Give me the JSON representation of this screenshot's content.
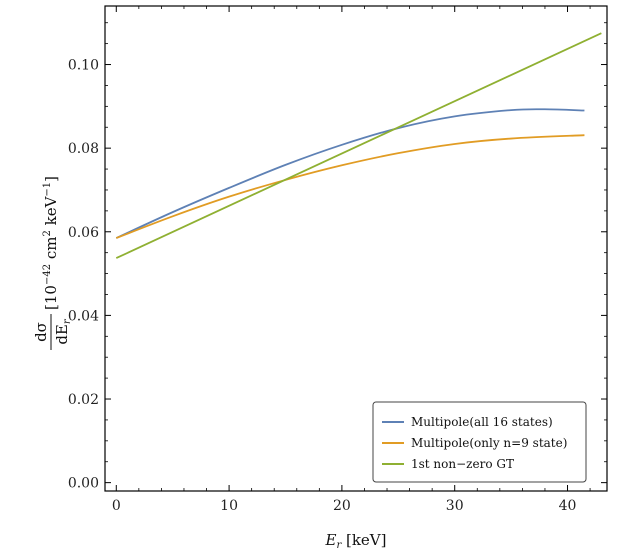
{
  "chart_data": {
    "type": "line",
    "xlabel": "E_r [keV]",
    "ylabel_parts": {
      "fraction_num": "dσ",
      "fraction_den": "dE",
      "fraction_den_sub": "r",
      "units_pre": "[10",
      "units_exp1": "−42",
      "units_mid": " cm",
      "units_exp2": "2",
      "units_mid2": " keV",
      "units_exp3": "−1",
      "units_post": "]"
    },
    "xlabel_parts": {
      "symbol": "E",
      "sub": "r",
      "units": " [keV]"
    },
    "xlim": [
      -1,
      43.5
    ],
    "ylim": [
      -0.002,
      0.114
    ],
    "xticks": [
      0,
      10,
      20,
      30,
      40
    ],
    "yticks": [
      0.0,
      0.02,
      0.04,
      0.06,
      0.08,
      0.1
    ],
    "ytick_labels": [
      "0.00",
      "0.02",
      "0.04",
      "0.06",
      "0.08",
      "0.10"
    ],
    "grid": false,
    "legend_position": "bottom-right",
    "series": [
      {
        "name": "Multipole(all 16 states)",
        "color": "#5e81b5",
        "x": [
          0,
          5,
          10,
          15,
          20,
          25,
          30,
          35,
          38,
          41.5
        ],
        "y": [
          0.0585,
          0.0647,
          0.0705,
          0.076,
          0.0808,
          0.0848,
          0.0876,
          0.0891,
          0.0893,
          0.089
        ]
      },
      {
        "name": "Multipole(only n=9 state)",
        "color": "#e19c24",
        "x": [
          0,
          5,
          10,
          15,
          20,
          25,
          30,
          35,
          41.5
        ],
        "y": [
          0.0585,
          0.0637,
          0.0684,
          0.0724,
          0.0759,
          0.0788,
          0.081,
          0.0823,
          0.0831
        ]
      },
      {
        "name": "1st non−zero GT",
        "color": "#8fb032",
        "x": [
          0,
          43
        ],
        "y": [
          0.0537,
          0.1075
        ]
      }
    ]
  }
}
